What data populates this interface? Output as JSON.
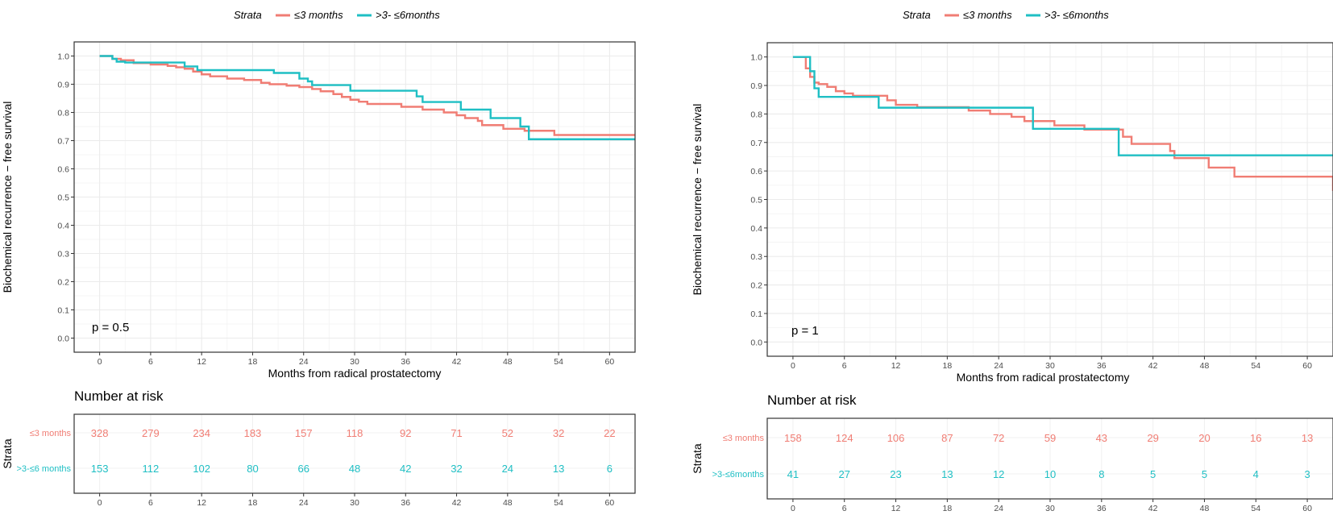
{
  "colors": {
    "s1": "#F07D74",
    "s2": "#1FBFC4",
    "grid": "#ebebeb",
    "frame": "#333333"
  },
  "chart_data": [
    {
      "type": "line",
      "legend": {
        "title": "Strata",
        "entries": [
          "≤3  months",
          ">3- ≤6months"
        ],
        "position": "top"
      },
      "xlabel": "Months from radical prostatectomy",
      "ylabel": "Biochemical recurrence − free survival",
      "xlim": [
        -3,
        63
      ],
      "ylim": [
        -0.05,
        1.05
      ],
      "xticks": [
        0,
        6,
        12,
        18,
        24,
        30,
        36,
        42,
        48,
        54,
        60
      ],
      "xtick_labels": [
        "0",
        "6",
        "12",
        "18",
        "24",
        "30",
        "36",
        "42",
        "48",
        "54",
        "60"
      ],
      "yticks": [
        0,
        0.1,
        0.2,
        0.3,
        0.4,
        0.5,
        0.6,
        0.7,
        0.8,
        0.9,
        1.0
      ],
      "ytick_labels": [
        "0.0",
        "0.1",
        "0.2",
        "0.3",
        "0.4",
        "0.5",
        "0.6",
        "0.7",
        "0.8",
        "0.9",
        "1.0"
      ],
      "pvalue": "p = 0.5",
      "series": [
        {
          "name": "≤3  months",
          "color": "#F07D74",
          "x": [
            0,
            1.5,
            2.5,
            4,
            6,
            8,
            9,
            10,
            11,
            12,
            13,
            15,
            17,
            19,
            20,
            22,
            23.5,
            25,
            26,
            27.5,
            28.5,
            29.5,
            30.5,
            31.5,
            35.5,
            38,
            40.5,
            42,
            43,
            44.5,
            45,
            47.5,
            50,
            53.5,
            63
          ],
          "y": [
            1.0,
            0.99,
            0.985,
            0.975,
            0.97,
            0.965,
            0.96,
            0.955,
            0.945,
            0.935,
            0.928,
            0.92,
            0.915,
            0.905,
            0.9,
            0.895,
            0.89,
            0.883,
            0.875,
            0.865,
            0.855,
            0.845,
            0.838,
            0.83,
            0.82,
            0.81,
            0.8,
            0.79,
            0.78,
            0.77,
            0.755,
            0.742,
            0.735,
            0.72,
            0.72
          ]
        },
        {
          "name": ">3- ≤6months",
          "color": "#1FBFC4",
          "x": [
            0,
            1.5,
            2,
            3,
            10,
            11.5,
            13.5,
            20.5,
            23.5,
            24.5,
            25,
            25.8,
            29.5,
            37.3,
            38,
            42.5,
            46,
            49.5,
            50.5,
            63
          ],
          "y": [
            1.0,
            0.99,
            0.98,
            0.977,
            0.963,
            0.95,
            0.95,
            0.94,
            0.92,
            0.91,
            0.897,
            0.897,
            0.877,
            0.857,
            0.837,
            0.81,
            0.78,
            0.75,
            0.705,
            0.705
          ]
        }
      ],
      "risk_table": {
        "title": "Number at risk",
        "strata_label": "Strata",
        "rows": [
          {
            "label": "≤3  months",
            "values": [
              "328",
              "279",
              "234",
              "183",
              "157",
              "118",
              "92",
              "71",
              "52",
              "32",
              "22"
            ]
          },
          {
            "label": ">3-≤6 months",
            "values": [
              "153",
              "112",
              "102",
              "80",
              "66",
              "48",
              "42",
              "32",
              "24",
              "13",
              "6"
            ]
          }
        ]
      }
    },
    {
      "type": "line",
      "legend": {
        "title": "Strata",
        "entries": [
          "≤3  months",
          ">3- ≤6months"
        ],
        "position": "top"
      },
      "xlabel": "Months from radical prostatectomy",
      "ylabel": "Biochemical recurrence − free survival",
      "xlim": [
        -3,
        63
      ],
      "ylim": [
        -0.05,
        1.05
      ],
      "xticks": [
        0,
        6,
        12,
        18,
        24,
        30,
        36,
        42,
        48,
        54,
        60
      ],
      "xtick_labels": [
        "0",
        "6",
        "12",
        "18",
        "24",
        "30",
        "36",
        "42",
        "48",
        "54",
        "60"
      ],
      "yticks": [
        0,
        0.1,
        0.2,
        0.3,
        0.4,
        0.5,
        0.6,
        0.7,
        0.8,
        0.9,
        1.0
      ],
      "ytick_labels": [
        "0.0",
        "0.1",
        "0.2",
        "0.3",
        "0.4",
        "0.5",
        "0.6",
        "0.7",
        "0.8",
        "0.9",
        "1.0"
      ],
      "pvalue": "p = 1",
      "series": [
        {
          "name": "≤3  months",
          "color": "#F07D74",
          "x": [
            0,
            1.5,
            2,
            2.5,
            3,
            4,
            5,
            6,
            7,
            8,
            11,
            12,
            13,
            14.5,
            20.5,
            23,
            25.5,
            27,
            30.5,
            34,
            38.5,
            39.5,
            44,
            44.5,
            48.5,
            51.5,
            63,
            63
          ],
          "y": [
            1.0,
            0.96,
            0.93,
            0.91,
            0.905,
            0.895,
            0.88,
            0.872,
            0.864,
            0.864,
            0.848,
            0.832,
            0.832,
            0.824,
            0.812,
            0.8,
            0.79,
            0.775,
            0.76,
            0.745,
            0.72,
            0.695,
            0.67,
            0.645,
            0.612,
            0.58,
            0.58,
            0.53
          ]
        },
        {
          "name": ">3- ≤6months",
          "color": "#1FBFC4",
          "x": [
            0,
            2,
            2.5,
            3,
            10,
            28,
            38,
            63
          ],
          "y": [
            1.0,
            0.95,
            0.89,
            0.86,
            0.822,
            0.748,
            0.655,
            0.655
          ]
        }
      ],
      "risk_table": {
        "title": "Number at risk",
        "strata_label": "Strata",
        "rows": [
          {
            "label": "≤3  months",
            "values": [
              "158",
              "124",
              "106",
              "87",
              "72",
              "59",
              "43",
              "29",
              "20",
              "16",
              "13"
            ]
          },
          {
            "label": ">3-≤6months",
            "values": [
              "41",
              "27",
              "23",
              "13",
              "12",
              "10",
              "8",
              "5",
              "5",
              "4",
              "3"
            ]
          }
        ]
      }
    }
  ]
}
